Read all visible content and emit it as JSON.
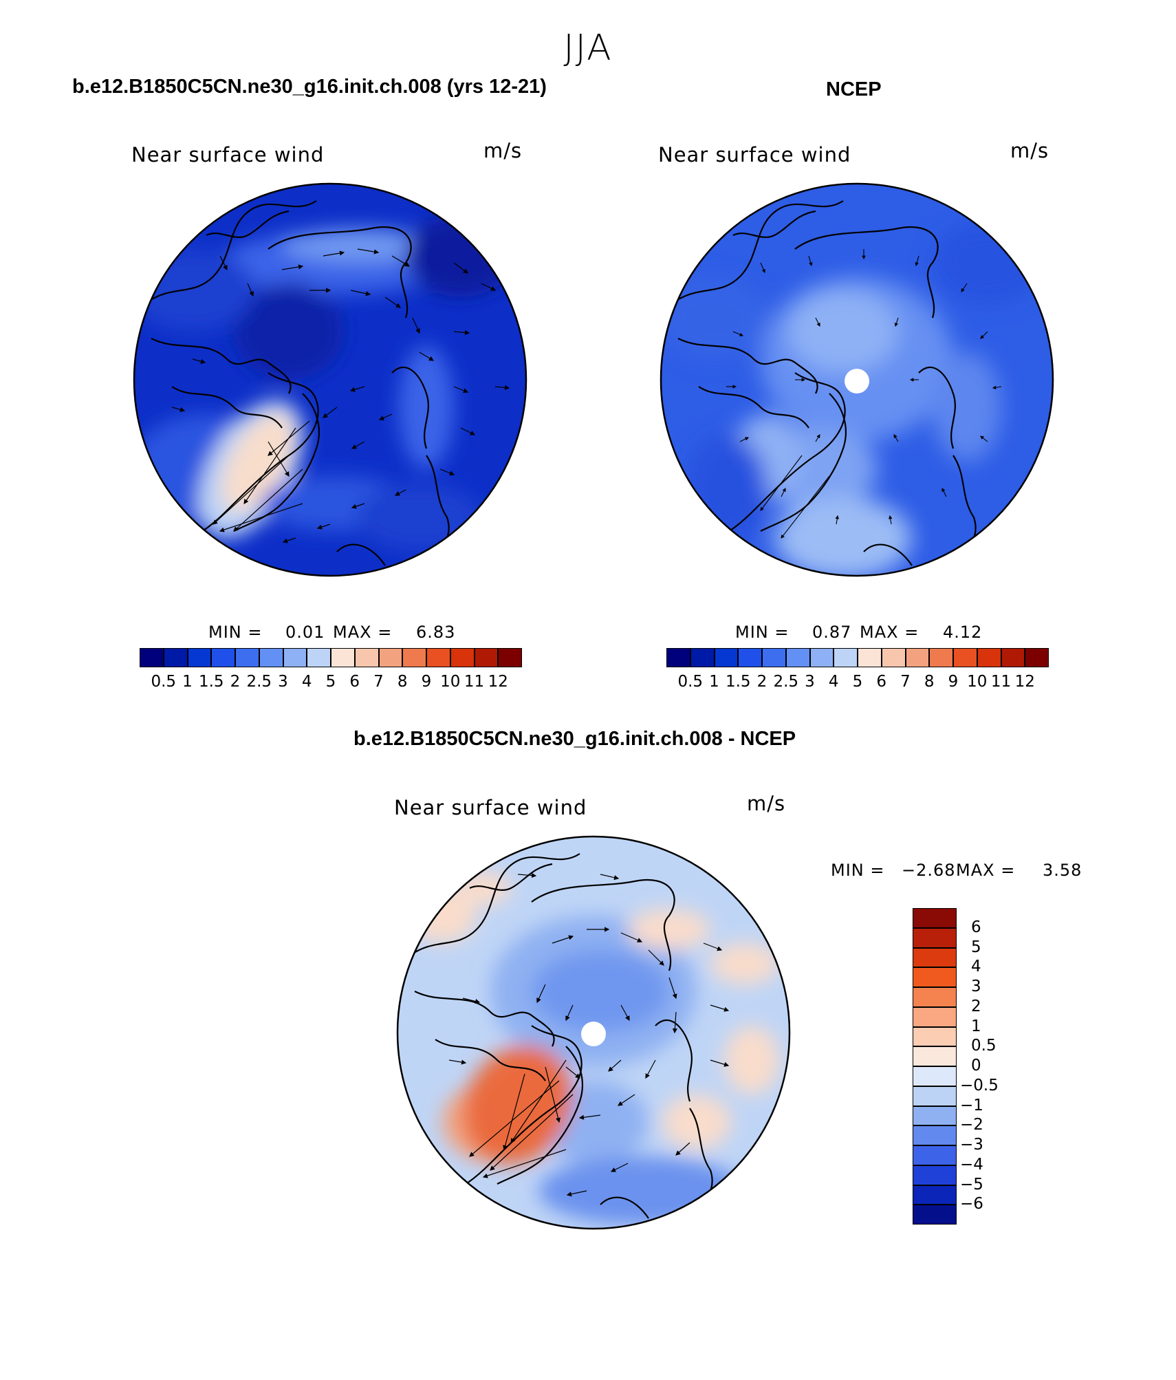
{
  "season": "JJA",
  "panels": [
    {
      "title": "b.e12.B1850C5CN.ne30_g16.init.ch.008 (yrs 12-21)",
      "field": "Near surface wind",
      "units": "m/s",
      "min_label": "MIN =",
      "min_value": "0.01",
      "max_label": "MAX =",
      "max_value": "6.83"
    },
    {
      "title": "NCEP",
      "field": "Near surface wind",
      "units": "m/s",
      "min_label": "MIN =",
      "min_value": "0.87",
      "max_label": "MAX =",
      "max_value": "4.12"
    },
    {
      "title": "b.e12.B1850C5CN.ne30_g16.init.ch.008 - NCEP",
      "field": "Near surface wind",
      "units": "m/s",
      "min_label": "MIN =",
      "min_value": "−2.68",
      "max_label": "MAX =",
      "max_value": "3.58"
    }
  ],
  "abs_colorbar": {
    "ticks": [
      "0.5",
      "1",
      "1.5",
      "2",
      "2.5",
      "3",
      "4",
      "5",
      "6",
      "7",
      "8",
      "9",
      "10",
      "11",
      "12"
    ],
    "colors": [
      "#00007d",
      "#001aa8",
      "#0537d2",
      "#1f50ea",
      "#3d6ef0",
      "#6390f4",
      "#8eb1f5",
      "#bdd4f7",
      "#fbe4d6",
      "#f7c6ad",
      "#f2a27f",
      "#ee7a4d",
      "#e95022",
      "#d8330a",
      "#b01a04",
      "#7d0000"
    ]
  },
  "diff_colorbar": {
    "ticks": [
      "6",
      "5",
      "4",
      "3",
      "2",
      "1",
      "0.5",
      "0",
      "−0.5",
      "−1",
      "−2",
      "−3",
      "−4",
      "−5",
      "−6"
    ],
    "colors": [
      "#8a0a05",
      "#b8200a",
      "#dc3a0f",
      "#f05a1e",
      "#f58350",
      "#f9a882",
      "#fbcdb3",
      "#fbe8dc",
      "#dde9fa",
      "#bcd3f5",
      "#8fb1f2",
      "#6289ee",
      "#3d63e8",
      "#1f41d8",
      "#0a25b8",
      "#040f8c"
    ]
  },
  "colors": {
    "land_outline": "#000000",
    "map_border": "#000000"
  }
}
